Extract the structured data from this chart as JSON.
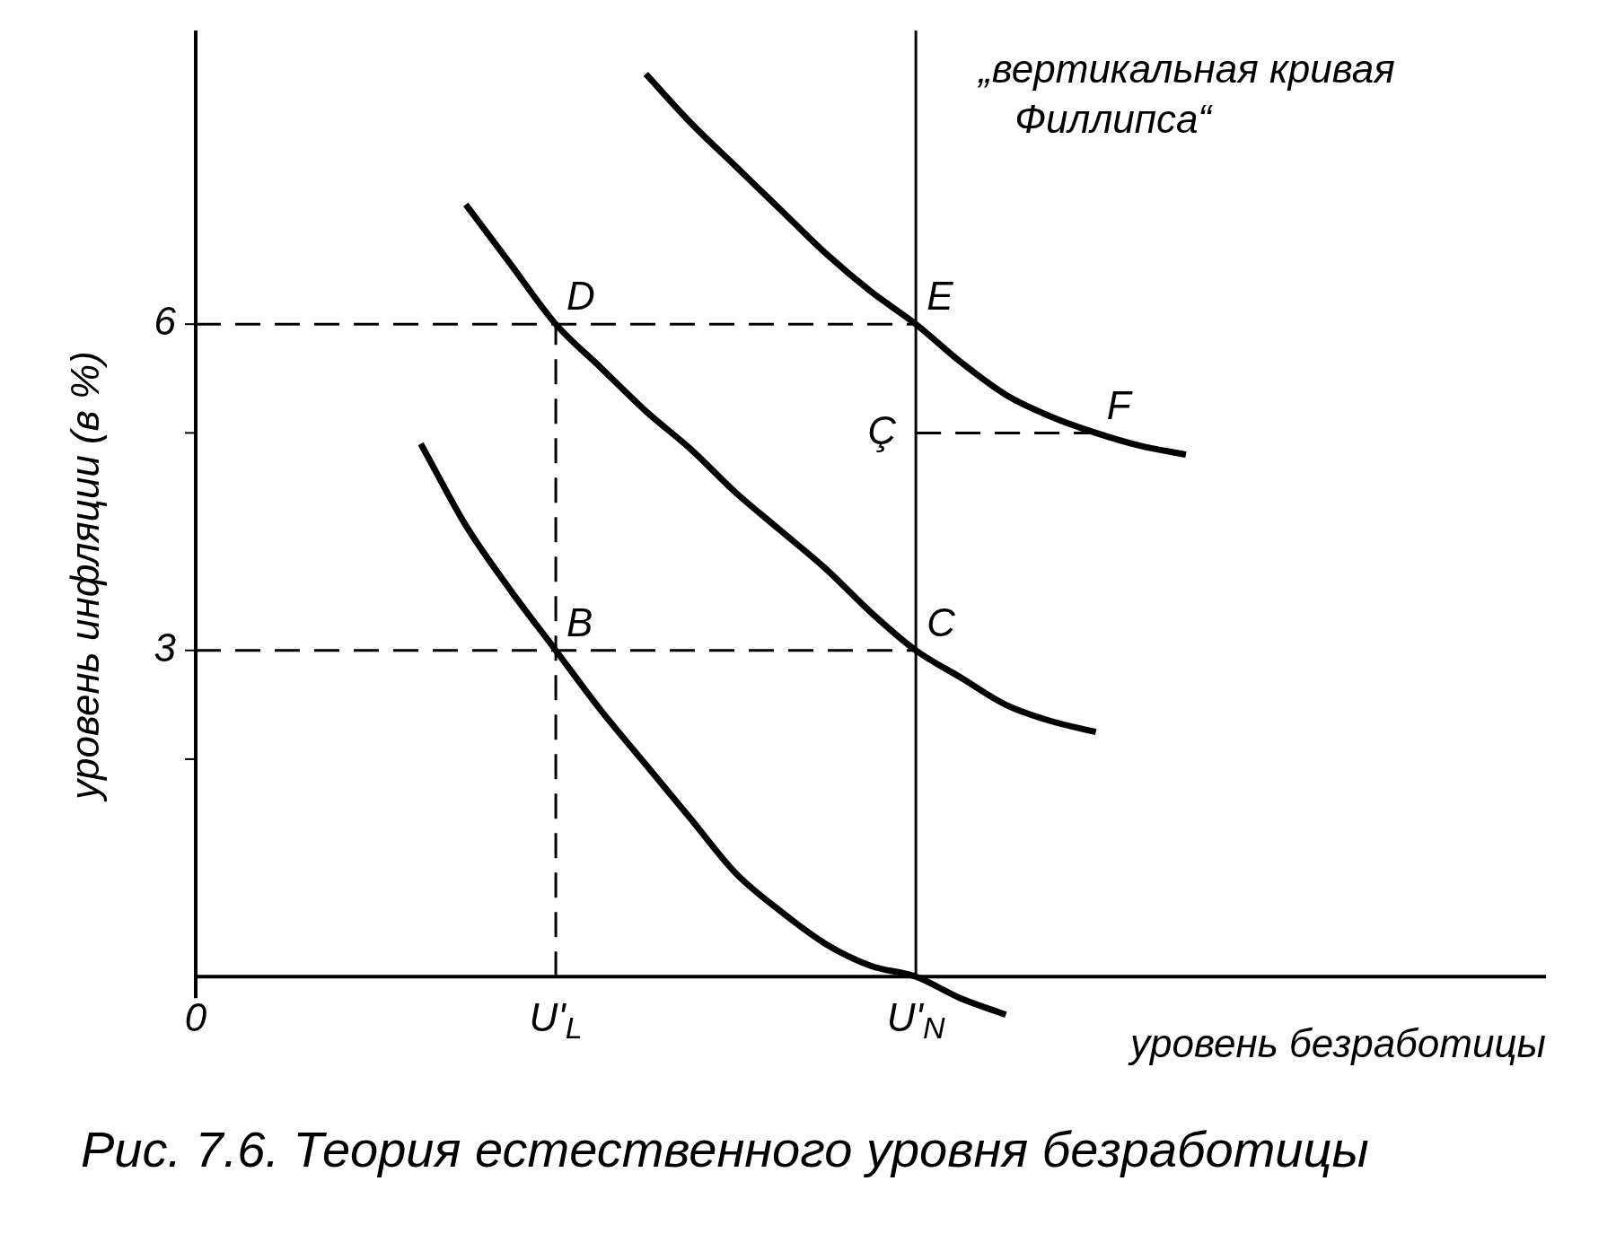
{
  "chart_data": {
    "type": "line",
    "title": "Рис. 7.6. Теория естественного уровня безработицы",
    "xlabel": "уровень безработицы",
    "ylabel": "уровень инфляции (в %)",
    "categories": [
      "0",
      null,
      null,
      null,
      null,
      null,
      null,
      null,
      "U'$_{L}$",
      null,
      null,
      null,
      null,
      null,
      null,
      null,
      "U'$_{N}$",
      null,
      null,
      null,
      null,
      null,
      null,
      null,
      null,
      null,
      null,
      null,
      null,
      null,
      null
    ],
    "ylim": [
      -0.6,
      8.7
    ],
    "yticks": [
      {
        "value": 2,
        "label": null
      },
      3,
      {
        "value": 5,
        "label": null
      },
      6
    ],
    "marker": "none",
    "grid": false,
    "legend": false,
    "ref_lines": [
      {
        "axis": "x",
        "value": "U'$_{N}$",
        "label": "„вертикальная кривая Филлипса“",
        "color": "#000000",
        "line_style": "solid"
      },
      {
        "axis": "x",
        "value": "U'$_{L}$",
        "color": "#000000",
        "line_style": "dashed"
      }
    ],
    "annotations": [
      {
        "text": "B",
        "x": "U'$_{L}$",
        "y": 3
      },
      {
        "text": "C",
        "x": "U'$_{N}$",
        "y": 3
      },
      {
        "text": "D",
        "x": "U'$_{L}$",
        "y": 6
      },
      {
        "text": "E",
        "x": "U'$_{N}$",
        "y": 6
      },
      "F",
      {
        "text": "Ç",
        "x": "U'$_{N}$",
        "y": 5
      }
    ],
    "series": [
      {
        "type": "line",
        "color": "#000000",
        "line_style": "solid",
        "values": [
          null,
          null,
          null,
          null,
          null,
          4.9,
          4.15,
          3.55,
          3,
          2.45,
          1.95,
          1.45,
          0.95,
          0.6,
          0.3,
          0.1,
          0,
          -0.2,
          -0.35,
          null,
          null,
          null,
          null,
          null,
          null,
          null,
          null,
          null,
          null,
          null,
          null
        ]
      },
      {
        "type": "line",
        "color": "#000000",
        "line_style": "solid",
        "values": [
          null,
          null,
          null,
          null,
          null,
          null,
          7.1,
          6.55,
          6,
          5.6,
          5.2,
          4.85,
          4.45,
          4.1,
          3.75,
          3.35,
          3,
          2.75,
          2.5,
          2.35,
          2.25,
          null,
          null,
          null,
          null,
          null,
          null,
          null,
          null,
          null,
          null
        ]
      },
      {
        "type": "line",
        "color": "#000000",
        "line_style": "solid",
        "values": [
          null,
          null,
          null,
          null,
          null,
          null,
          null,
          null,
          null,
          null,
          8.3,
          7.85,
          7.45,
          7.05,
          6.65,
          6.3,
          6,
          5.65,
          5.35,
          5.15,
          5,
          4.88,
          4.8,
          null,
          null,
          null,
          null,
          null,
          null,
          null,
          null
        ]
      },
      {
        "type": "line",
        "color": "#000000",
        "line_style": "dashed",
        "values": [
          6,
          6,
          6,
          6,
          6,
          6,
          6,
          6,
          6,
          6,
          6,
          6,
          6,
          6,
          6,
          6,
          6,
          null,
          null,
          null,
          null,
          null,
          null,
          null,
          null,
          null,
          null,
          null,
          null,
          null,
          null
        ]
      },
      {
        "type": "line",
        "color": "#000000",
        "line_style": "dashed",
        "values": [
          3,
          3,
          3,
          3,
          3,
          3,
          3,
          3,
          3,
          3,
          3,
          3,
          3,
          3,
          3,
          3,
          3,
          null,
          null,
          null,
          null,
          null,
          null,
          null,
          null,
          null,
          null,
          null,
          null,
          null,
          null
        ]
      },
      {
        "type": "line",
        "color": "#000000",
        "line_style": "dashed",
        "values": [
          null,
          null,
          null,
          null,
          null,
          null,
          null,
          null,
          null,
          null,
          null,
          null,
          null,
          null,
          null,
          null,
          5,
          5,
          5,
          5,
          5,
          null,
          null,
          null,
          null,
          null,
          null,
          null,
          null,
          null,
          null
        ]
      }
    ]
  }
}
